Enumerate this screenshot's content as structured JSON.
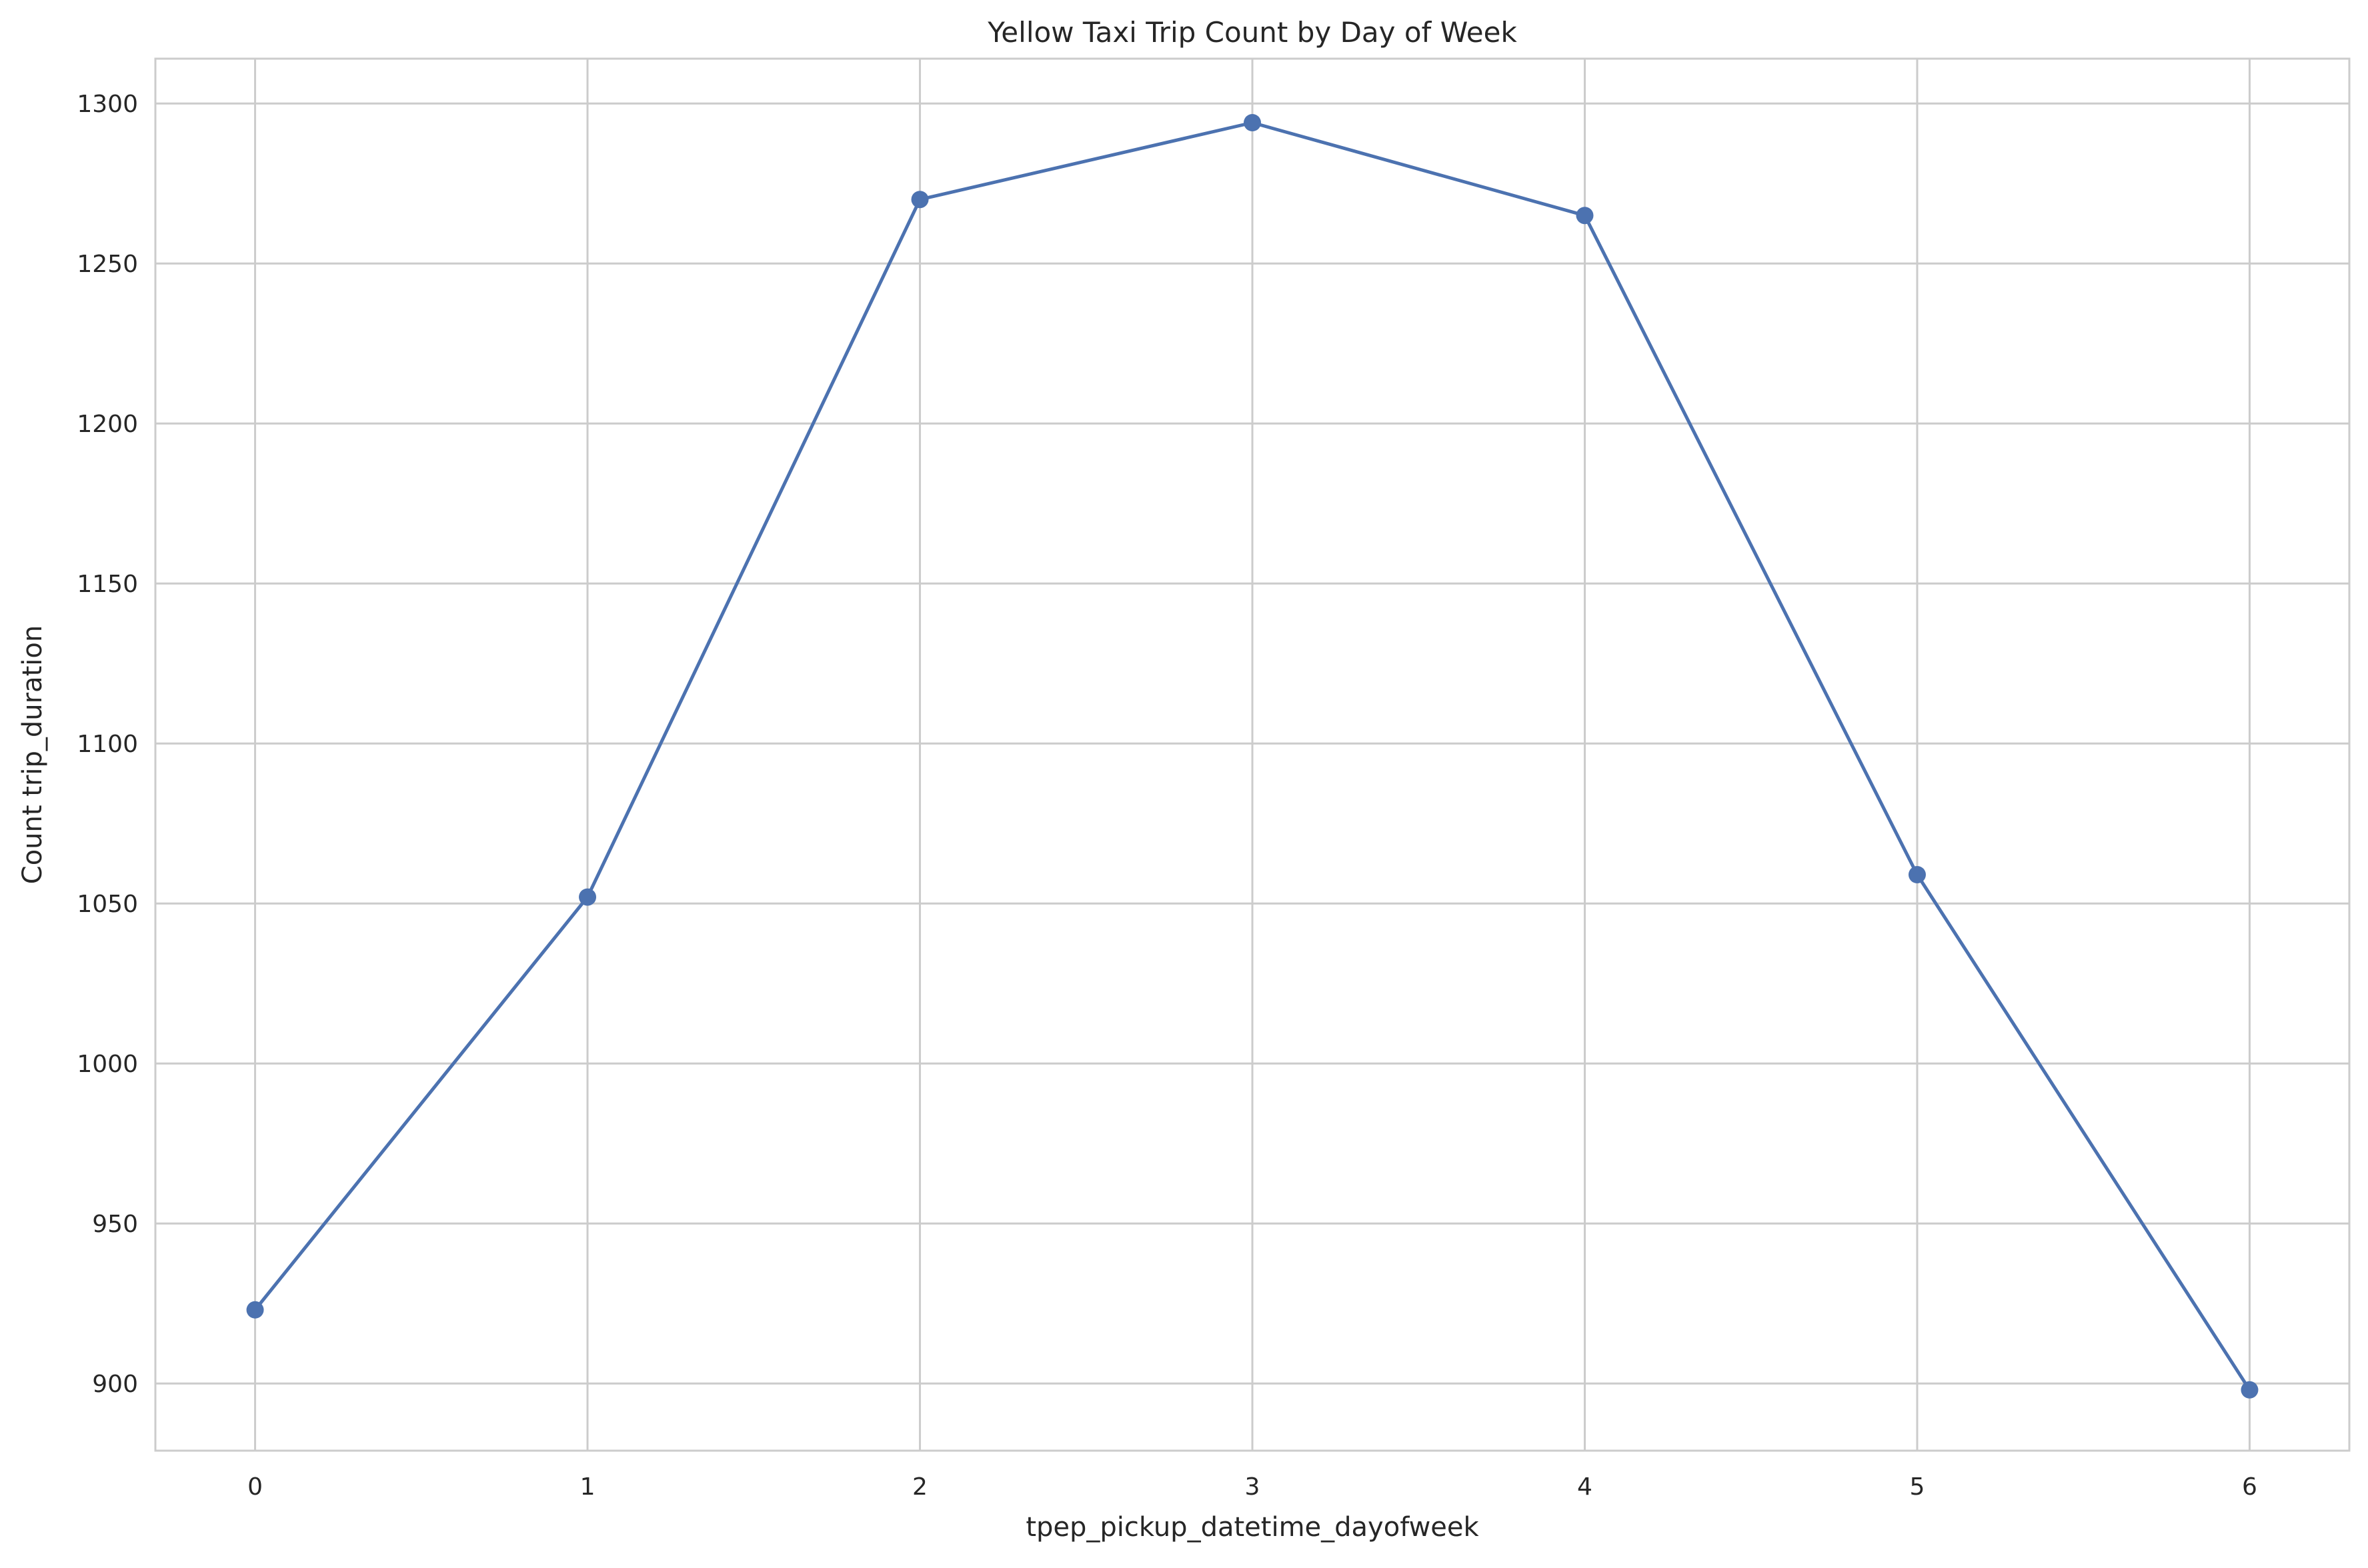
{
  "chart_data": {
    "type": "line",
    "title": "Yellow Taxi Trip Count by Day of Week",
    "xlabel": "tpep_pickup_datetime_dayofweek",
    "ylabel": "Count trip_duration",
    "x": [
      0,
      1,
      2,
      3,
      4,
      5,
      6
    ],
    "xticks": [
      "0",
      "1",
      "2",
      "3",
      "4",
      "5",
      "6"
    ],
    "yticks": [
      900,
      950,
      1000,
      1050,
      1100,
      1150,
      1200,
      1250,
      1300
    ],
    "xlim": [
      -0.3,
      6.3
    ],
    "ylim": [
      879,
      1314
    ],
    "grid": true,
    "series": [
      {
        "values": [
          923,
          1052,
          1270,
          1294,
          1265,
          1059,
          898
        ],
        "color": "#4c72b0",
        "marker": "circle"
      }
    ],
    "colors": {
      "grid": "#cccccc",
      "spine": "#cccccc",
      "text": "#262626",
      "background": "#ffffff"
    }
  }
}
